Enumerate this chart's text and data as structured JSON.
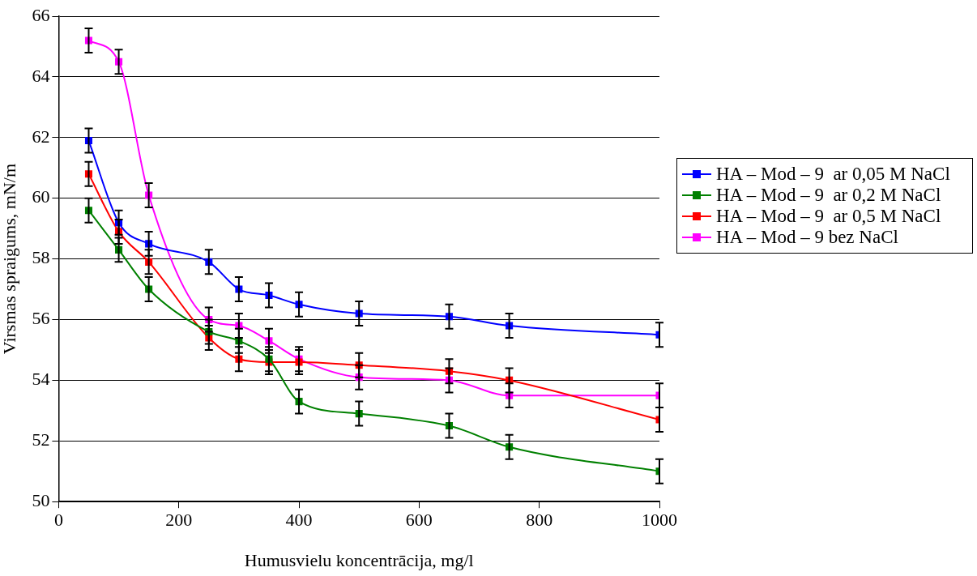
{
  "chart_data": {
    "type": "line",
    "xlabel": "Humusvielu koncentrācija, mg/l",
    "ylabel": "Virsmas spraigums, mN/m",
    "x": [
      50,
      100,
      150,
      250,
      300,
      350,
      400,
      500,
      650,
      750,
      1000
    ],
    "xlim": [
      0,
      1000
    ],
    "xticks": [
      0,
      200,
      400,
      600,
      800,
      1000
    ],
    "ylim": [
      50,
      66
    ],
    "yticks": [
      50,
      52,
      54,
      56,
      58,
      60,
      62,
      64,
      66
    ],
    "grid": "y",
    "legend": "right",
    "marker": "square",
    "line_style": "solid",
    "series": [
      {
        "name": "HA – Mod – 9  ar 0,05 M NaCl",
        "color": "#0000ff",
        "values": [
          61.9,
          59.2,
          58.5,
          57.9,
          57.0,
          56.8,
          56.5,
          56.2,
          56.1,
          55.8,
          55.5
        ],
        "errors": [
          0.4,
          0.4,
          0.4,
          0.4,
          0.4,
          0.4,
          0.4,
          0.4,
          0.4,
          0.4,
          0.4
        ]
      },
      {
        "name": "HA – Mod – 9  ar 0,2 M NaCl",
        "color": "#008000",
        "values": [
          59.6,
          58.3,
          57.0,
          55.6,
          55.3,
          54.7,
          53.3,
          52.9,
          52.5,
          51.8,
          51.0
        ],
        "errors": [
          0.4,
          0.4,
          0.4,
          0.4,
          0.4,
          0.4,
          0.4,
          0.4,
          0.4,
          0.4,
          0.4
        ]
      },
      {
        "name": "HA – Mod – 9  ar 0,5 M NaCl",
        "color": "#ff0000",
        "values": [
          60.8,
          58.9,
          57.9,
          55.4,
          54.7,
          54.6,
          54.6,
          54.5,
          54.3,
          54.0,
          52.7
        ],
        "errors": [
          0.4,
          0.4,
          0.4,
          0.4,
          0.4,
          0.4,
          0.4,
          0.4,
          0.4,
          0.4,
          0.4
        ]
      },
      {
        "name": "HA – Mod – 9 bez NaCl",
        "color": "#ff00ff",
        "values": [
          65.2,
          64.5,
          60.1,
          56.0,
          55.8,
          55.3,
          54.7,
          54.1,
          54.0,
          53.5,
          53.5
        ],
        "errors": [
          0.4,
          0.4,
          0.4,
          0.4,
          0.4,
          0.4,
          0.4,
          0.4,
          0.4,
          0.4,
          0.4
        ]
      }
    ]
  }
}
